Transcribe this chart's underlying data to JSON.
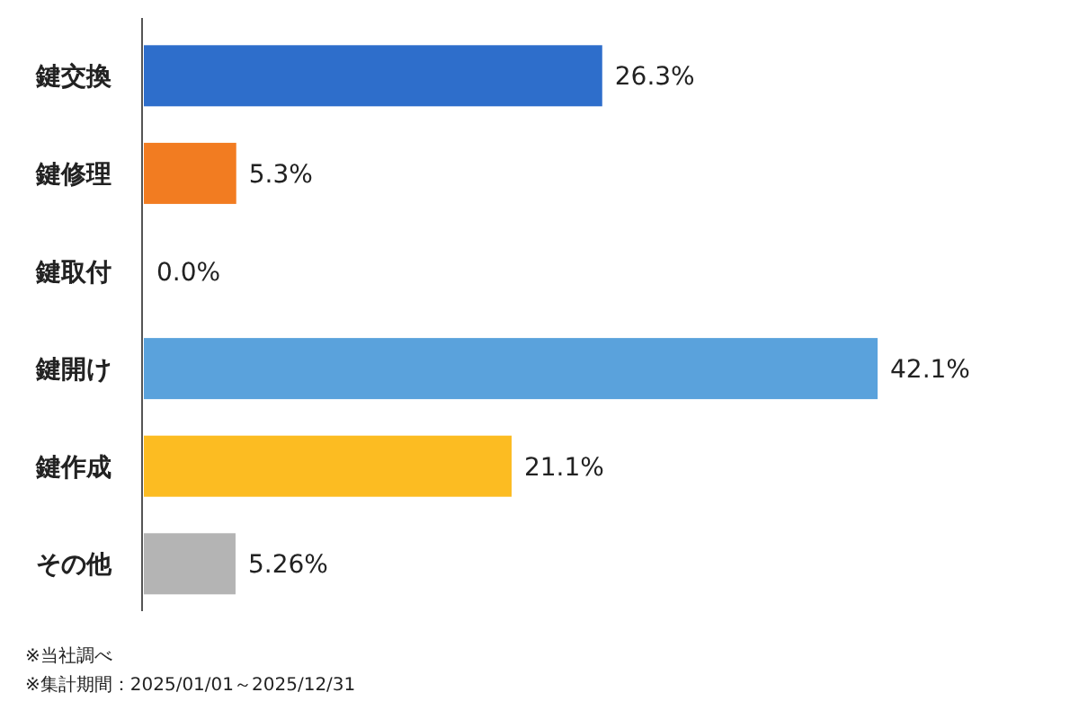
{
  "chart_data": {
    "type": "bar",
    "orientation": "horizontal",
    "categories": [
      "鍵交換",
      "鍵修理",
      "鍵取付",
      "鍵開け",
      "鍵作成",
      "その他"
    ],
    "values": [
      26.3,
      5.3,
      0.0,
      42.1,
      21.1,
      5.26
    ],
    "value_labels": [
      "26.3%",
      "5.3%",
      "0.0%",
      "42.1%",
      "21.1%",
      "5.26%"
    ],
    "colors": [
      "#2e6ecb",
      "#f27c21",
      null,
      "#5aa2dc",
      "#fcbc22",
      "#b4b4b4"
    ],
    "annotations": [
      "※当社調べ",
      "※集計期間：2025/01/01～2025/12/31"
    ]
  }
}
